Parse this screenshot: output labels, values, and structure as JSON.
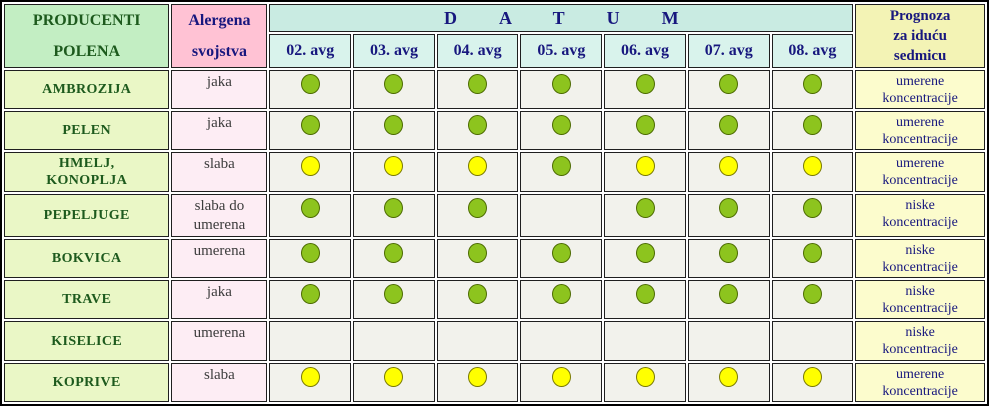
{
  "table": {
    "producers_header": "PRODUCENTI\nPOLENA",
    "allergen_header": "Alergena\nsvojstva",
    "datum_header": "DATUM",
    "forecast_header": "Prognoza\nza iduću\nsedmicu",
    "dates": [
      "02. avg",
      "03. avg",
      "04. avg",
      "05. avg",
      "06. avg",
      "07. avg",
      "08. avg"
    ],
    "rows": [
      {
        "name": "AMBROZIJA",
        "allergen": "jaka",
        "dots": [
          "green",
          "green",
          "green",
          "green",
          "green",
          "green",
          "green"
        ],
        "forecast": "umerene\nkoncentracije"
      },
      {
        "name": "PELEN",
        "allergen": "jaka",
        "dots": [
          "green",
          "green",
          "green",
          "green",
          "green",
          "green",
          "green"
        ],
        "forecast": "umerene\nkoncentracije"
      },
      {
        "name": "HMELJ,\nKONOPLJA",
        "allergen": "slaba",
        "dots": [
          "yellow",
          "yellow",
          "yellow",
          "green",
          "yellow",
          "yellow",
          "yellow"
        ],
        "forecast": "umerene\nkoncentracije"
      },
      {
        "name": "PEPELJUGE",
        "allergen": "slaba do\numerena",
        "dots": [
          "green",
          "green",
          "green",
          "none",
          "green",
          "green",
          "green"
        ],
        "forecast": "niske\nkoncentracije"
      },
      {
        "name": "BOKVICA",
        "allergen": "umerena",
        "dots": [
          "green",
          "green",
          "green",
          "green",
          "green",
          "green",
          "green"
        ],
        "forecast": "niske\nkoncentracije"
      },
      {
        "name": "TRAVE",
        "allergen": "jaka",
        "dots": [
          "green",
          "green",
          "green",
          "green",
          "green",
          "green",
          "green"
        ],
        "forecast": "niske\nkoncentracije"
      },
      {
        "name": "KISELICE",
        "allergen": "umerena",
        "dots": [
          "none",
          "none",
          "none",
          "none",
          "none",
          "none",
          "none"
        ],
        "forecast": "niske\nkoncentracije"
      },
      {
        "name": "KOPRIVE",
        "allergen": "slaba",
        "dots": [
          "yellow",
          "yellow",
          "yellow",
          "yellow",
          "yellow",
          "yellow",
          "yellow"
        ],
        "forecast": "umerene\nkoncentracije"
      }
    ]
  },
  "chart_data": {
    "type": "table",
    "title": "",
    "columns": [
      "PRODUCENTI POLENA",
      "Alergena svojstva",
      "02. avg",
      "03. avg",
      "04. avg",
      "05. avg",
      "06. avg",
      "07. avg",
      "08. avg",
      "Prognoza za iduću sedmicu"
    ],
    "rows": [
      [
        "AMBROZIJA",
        "jaka",
        "green-dot",
        "green-dot",
        "green-dot",
        "green-dot",
        "green-dot",
        "green-dot",
        "green-dot",
        "umerene koncentracije"
      ],
      [
        "PELEN",
        "jaka",
        "green-dot",
        "green-dot",
        "green-dot",
        "green-dot",
        "green-dot",
        "green-dot",
        "green-dot",
        "umerene koncentracije"
      ],
      [
        "HMELJ, KONOPLJA",
        "slaba",
        "yellow-dot",
        "yellow-dot",
        "yellow-dot",
        "green-dot",
        "yellow-dot",
        "yellow-dot",
        "yellow-dot",
        "umerene koncentracije"
      ],
      [
        "PEPELJUGE",
        "slaba do umerena",
        "green-dot",
        "green-dot",
        "green-dot",
        "",
        "green-dot",
        "green-dot",
        "green-dot",
        "niske koncentracije"
      ],
      [
        "BOKVICA",
        "umerena",
        "green-dot",
        "green-dot",
        "green-dot",
        "green-dot",
        "green-dot",
        "green-dot",
        "green-dot",
        "niske koncentracije"
      ],
      [
        "TRAVE",
        "jaka",
        "green-dot",
        "green-dot",
        "green-dot",
        "green-dot",
        "green-dot",
        "green-dot",
        "green-dot",
        "niske koncentracije"
      ],
      [
        "KISELICE",
        "umerena",
        "",
        "",
        "",
        "",
        "",
        "",
        "",
        "niske koncentracije"
      ],
      [
        "KOPRIVE",
        "slaba",
        "yellow-dot",
        "yellow-dot",
        "yellow-dot",
        "yellow-dot",
        "yellow-dot",
        "yellow-dot",
        "yellow-dot",
        "umerene koncentracije"
      ]
    ],
    "legend_position": "none",
    "grid": true
  },
  "colors": {
    "frame": "#000000",
    "grid": "#1f1f1f",
    "header-green": "#c3eec3",
    "row-green": "#eaf7c6",
    "header-pink": "#ffc2d4",
    "cell-pink": "#fdedf4",
    "datum-blue": "#c9ebe2",
    "date-blue": "#d9f3ec",
    "header-yellow": "#f3f3b5",
    "cell-yellow": "#fcfccd",
    "cell-gray": "#f2f2ec",
    "dot-green": "#8dc41e",
    "dot-green-border": "#4c6b00",
    "dot-yellow": "#ffff00",
    "dot-yellow-border": "#7a7a00",
    "text-green": "#1d5a1d",
    "text-navy": "#17177e",
    "text-dark": "#3c3c3c"
  }
}
